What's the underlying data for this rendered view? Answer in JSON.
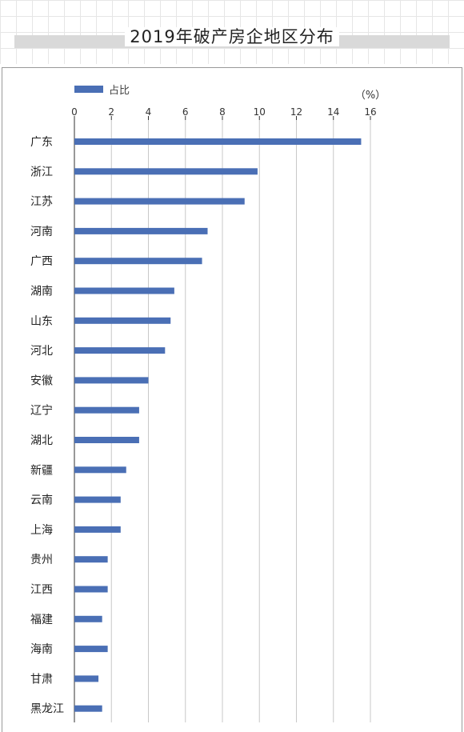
{
  "page": {
    "title": "2019年破产房企地区分布"
  },
  "chart_data": {
    "type": "bar",
    "orientation": "horizontal",
    "title": "2019年破产房企地区分布",
    "legend": {
      "label": "占比",
      "position": "top-left"
    },
    "unit_label": "（%）",
    "xlim": [
      0,
      16
    ],
    "xticks": [
      0,
      2,
      4,
      6,
      8,
      10,
      12,
      14,
      16
    ],
    "grid": true,
    "bar_color": "#4a6fb5",
    "categories": [
      "广东",
      "浙江",
      "江苏",
      "河南",
      "广西",
      "湖南",
      "山东",
      "河北",
      "安徽",
      "辽宁",
      "湖北",
      "新疆",
      "云南",
      "上海",
      "贵州",
      "江西",
      "福建",
      "海南",
      "甘肃",
      "黑龙江"
    ],
    "series": [
      {
        "name": "占比",
        "values": [
          15.5,
          9.9,
          9.2,
          7.2,
          6.9,
          5.4,
          5.2,
          4.9,
          4.0,
          3.5,
          3.5,
          2.8,
          2.5,
          2.5,
          1.8,
          1.8,
          1.5,
          1.8,
          1.3,
          1.5
        ]
      }
    ]
  }
}
